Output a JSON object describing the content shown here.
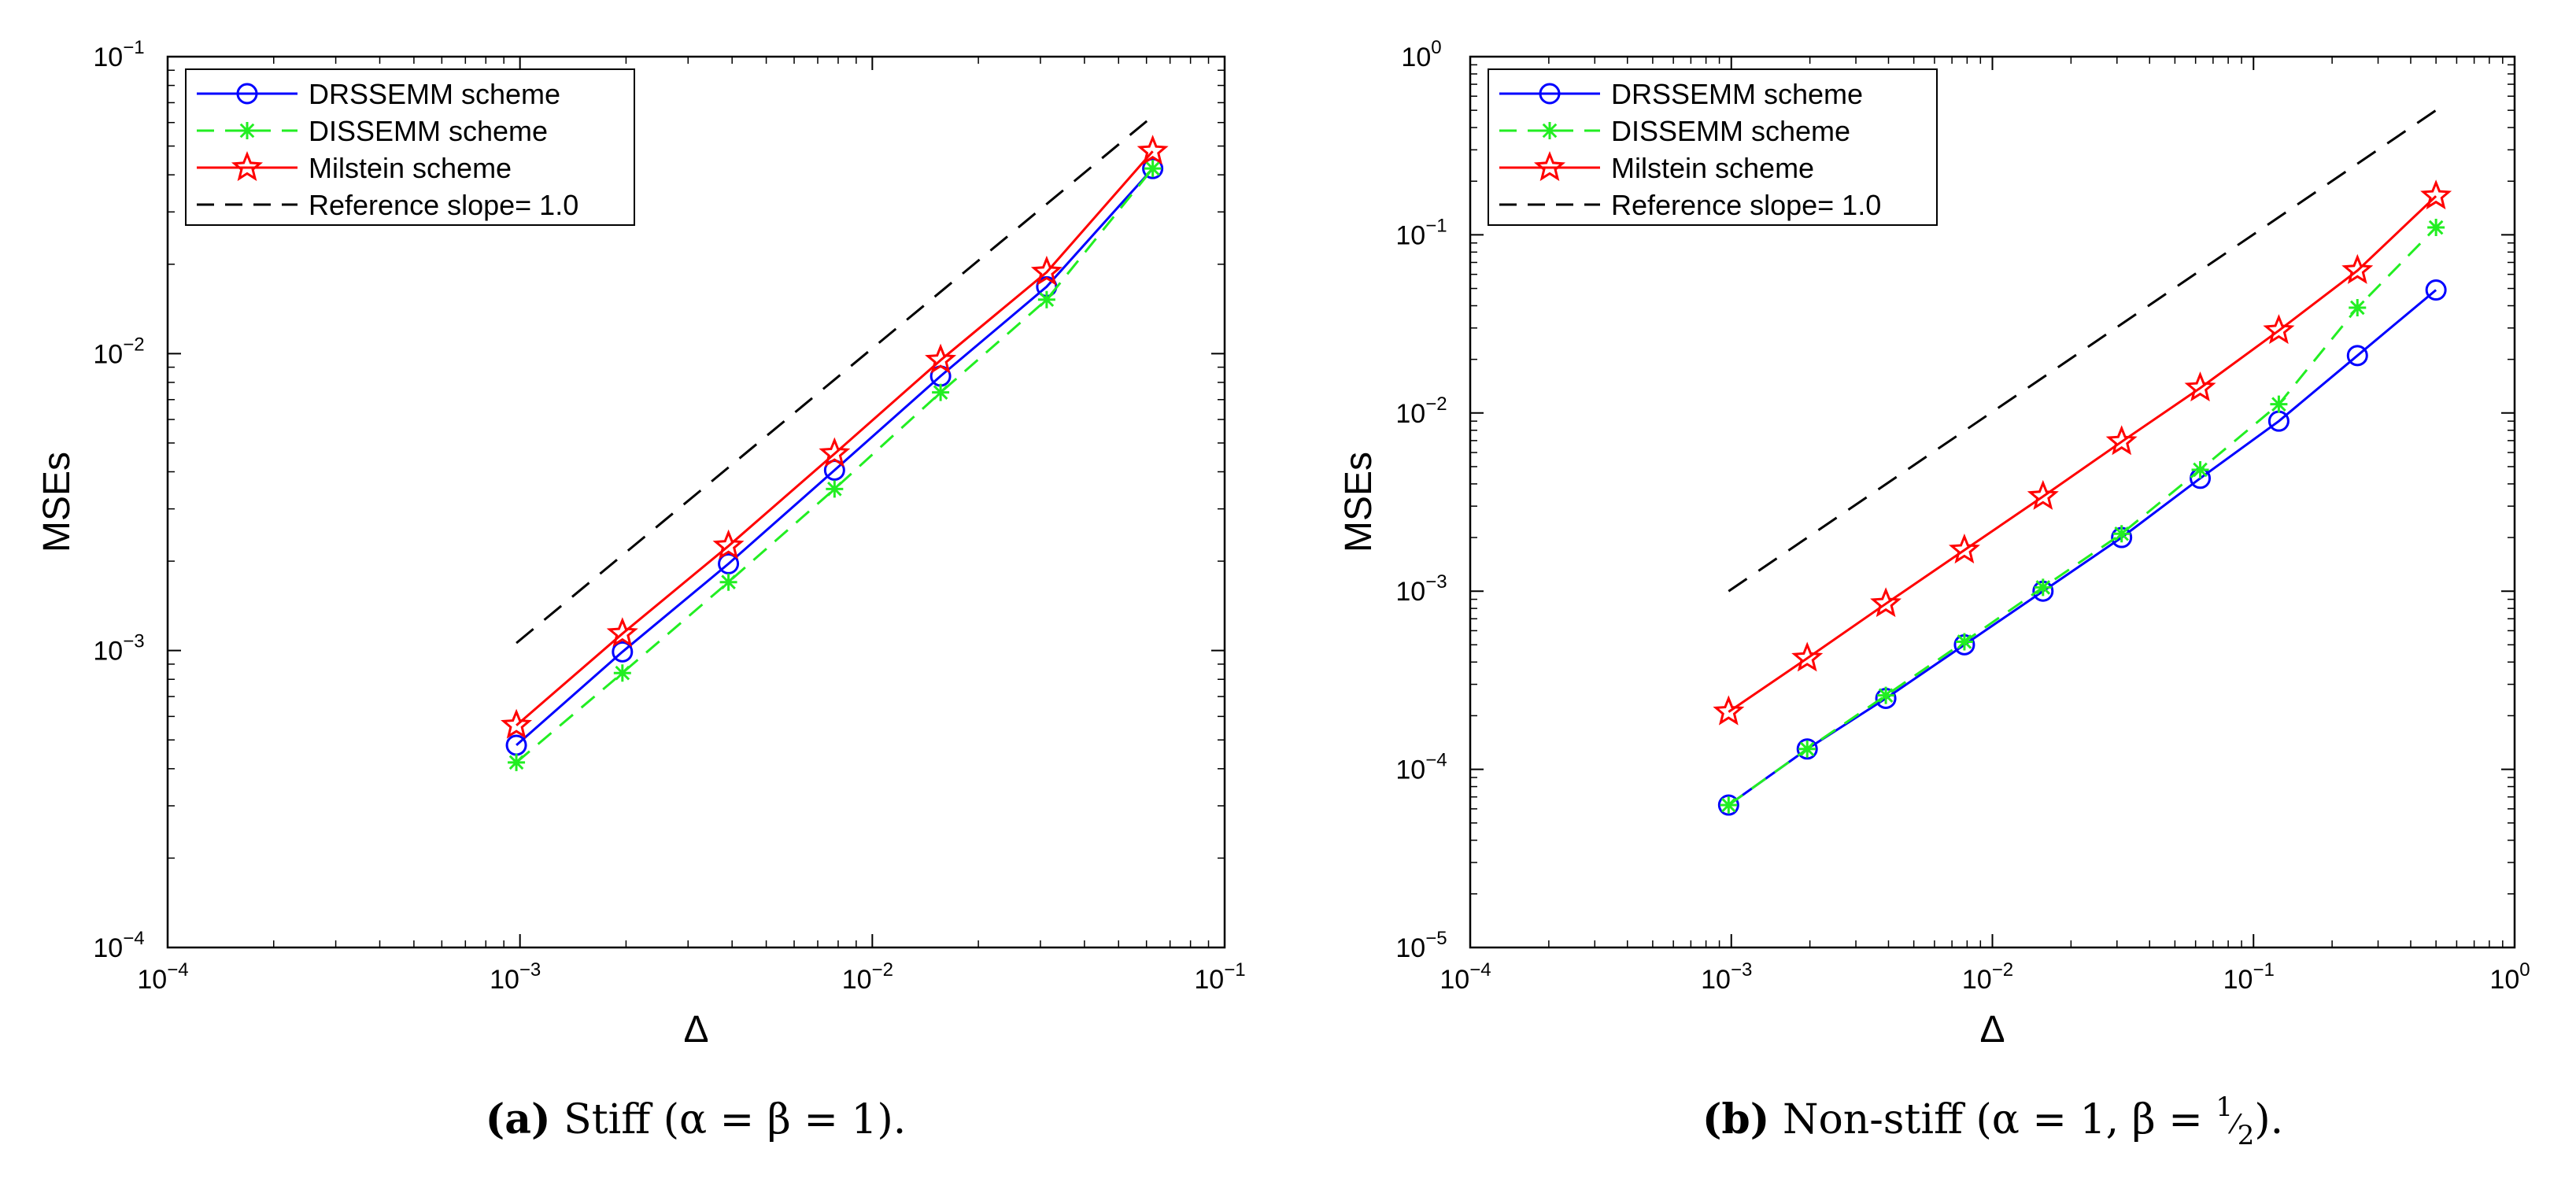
{
  "chart_data": [
    {
      "type": "line",
      "scale": "log-log",
      "xlabel": "Δ",
      "ylabel": "MSEs",
      "xlim": [
        0.0001,
        0.1
      ],
      "ylim": [
        0.0001,
        0.1
      ],
      "xticks": [
        {
          "base": "10",
          "exp": "−4",
          "value": 0.0001
        },
        {
          "base": "10",
          "exp": "−3",
          "value": 0.001
        },
        {
          "base": "10",
          "exp": "−2",
          "value": 0.01
        },
        {
          "base": "10",
          "exp": "−1",
          "value": 0.1
        }
      ],
      "yticks": [
        {
          "base": "10",
          "exp": "−4",
          "value": 0.0001
        },
        {
          "base": "10",
          "exp": "−3",
          "value": 0.001
        },
        {
          "base": "10",
          "exp": "−2",
          "value": 0.01
        },
        {
          "base": "10",
          "exp": "−1",
          "value": 0.1
        }
      ],
      "legend_position": "top-left",
      "x": [
        0.0009765625,
        0.001953125,
        0.00390625,
        0.0078125,
        0.015625,
        0.03125,
        0.0625
      ],
      "series": [
        {
          "name": "DRSSEMM scheme",
          "color": "#0000ff",
          "dash": "solid",
          "marker": "circle",
          "values": [
            0.00048,
            0.00099,
            0.00196,
            0.00405,
            0.0084,
            0.0168,
            0.042
          ]
        },
        {
          "name": "DISSEMM scheme",
          "color": "#22ee22",
          "dash": "dashed",
          "marker": "asterisk",
          "values": [
            0.00042,
            0.00084,
            0.0017,
            0.0035,
            0.0074,
            0.0152,
            0.042
          ]
        },
        {
          "name": "Milstein scheme",
          "color": "#ff0000",
          "dash": "solid",
          "marker": "star",
          "values": [
            0.00056,
            0.00114,
            0.00225,
            0.0046,
            0.0095,
            0.0188,
            0.048
          ]
        },
        {
          "name": "Reference slope= 1.0",
          "color": "#000000",
          "dash": "dashed",
          "marker": "none",
          "x": [
            0.0009765625,
            0.0625
          ],
          "values": [
            0.00106,
            0.063
          ]
        }
      ],
      "caption": {
        "label": "(a)",
        "text": "Stiff (α = β = 1)."
      }
    },
    {
      "type": "line",
      "scale": "log-log",
      "xlabel": "Δ",
      "ylabel": "MSEs",
      "xlim": [
        0.0001,
        1
      ],
      "ylim": [
        1e-05,
        1
      ],
      "xticks": [
        {
          "base": "10",
          "exp": "−4",
          "value": 0.0001
        },
        {
          "base": "10",
          "exp": "−3",
          "value": 0.001
        },
        {
          "base": "10",
          "exp": "−2",
          "value": 0.01
        },
        {
          "base": "10",
          "exp": "−1",
          "value": 0.1
        },
        {
          "base": "10",
          "exp": "0",
          "value": 1
        }
      ],
      "yticks": [
        {
          "base": "10",
          "exp": "−5",
          "value": 1e-05
        },
        {
          "base": "10",
          "exp": "−4",
          "value": 0.0001
        },
        {
          "base": "10",
          "exp": "−3",
          "value": 0.001
        },
        {
          "base": "10",
          "exp": "−2",
          "value": 0.01
        },
        {
          "base": "10",
          "exp": "−1",
          "value": 0.1
        },
        {
          "base": "10",
          "exp": "0",
          "value": 1
        }
      ],
      "legend_position": "top-left",
      "x": [
        0.0009765625,
        0.001953125,
        0.00390625,
        0.0078125,
        0.015625,
        0.03125,
        0.0625,
        0.125,
        0.25,
        0.5
      ],
      "series": [
        {
          "name": "DRSSEMM scheme",
          "color": "#0000ff",
          "dash": "solid",
          "marker": "circle",
          "values": [
            6.3e-05,
            0.00013,
            0.00025,
            0.0005,
            0.001,
            0.002,
            0.0043,
            0.009,
            0.021,
            0.049
          ]
        },
        {
          "name": "DISSEMM scheme",
          "color": "#22ee22",
          "dash": "dashed",
          "marker": "asterisk",
          "values": [
            6.3e-05,
            0.00013,
            0.00026,
            0.00052,
            0.00105,
            0.0021,
            0.0048,
            0.0112,
            0.039,
            0.11
          ]
        },
        {
          "name": "Milstein scheme",
          "color": "#ff0000",
          "dash": "solid",
          "marker": "star",
          "values": [
            0.00021,
            0.00042,
            0.00085,
            0.0017,
            0.0034,
            0.0069,
            0.0138,
            0.029,
            0.063,
            0.165
          ]
        },
        {
          "name": "Reference slope= 1.0",
          "color": "#000000",
          "dash": "dashed",
          "marker": "none",
          "x": [
            0.0009765625,
            0.5
          ],
          "values": [
            0.001,
            0.5
          ]
        }
      ],
      "caption": {
        "label": "(b)",
        "text_before": "Non-stiff (α = 1, β = ",
        "frac_num": "1",
        "frac_den": "2",
        "text_after": ")."
      }
    }
  ]
}
